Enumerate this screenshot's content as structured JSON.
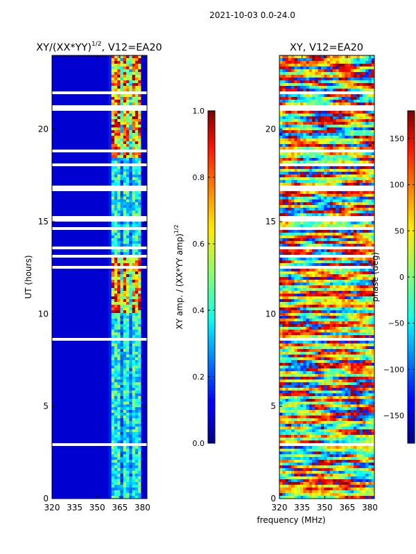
{
  "figure": {
    "suptitle": "2021-10-03 0.0-24.0",
    "shared_xlabel": "frequency (MHz)"
  },
  "chart_data": [
    {
      "type": "heatmap",
      "title": "XY/(XX*YY)",
      "title_exponent": "1/2",
      "title_suffix": ", V12=EA20",
      "xlabel": "",
      "ylabel": "UT (hours)",
      "xlim": [
        320,
        383
      ],
      "ylim": [
        0,
        24
      ],
      "xticks": [
        320,
        335,
        350,
        365,
        380
      ],
      "yticks": [
        0,
        5,
        10,
        15,
        20
      ],
      "colorbar": {
        "label": "XY amp. / (XX*YY amp)",
        "label_exponent": "1/2",
        "range": [
          0.0,
          1.0
        ],
        "ticks": [
          "0.0",
          "0.2",
          "0.4",
          "0.6",
          "0.8",
          "1.0"
        ],
        "tick_values": [
          0.0,
          0.2,
          0.4,
          0.6,
          0.8,
          1.0
        ]
      },
      "colormap": "jet",
      "active_band_mhz": [
        360,
        380
      ],
      "high_amplitude_intervals_ut": [
        [
          10.0,
          13.0
        ],
        [
          18.5,
          24.0
        ]
      ]
    },
    {
      "type": "heatmap",
      "title": "XY, V12=EA20",
      "xlabel": "frequency (MHz)",
      "ylabel": "",
      "xlim": [
        320,
        383
      ],
      "ylim": [
        0,
        24
      ],
      "xticks": [
        320,
        335,
        350,
        365,
        380
      ],
      "yticks": [
        0,
        5,
        10,
        15,
        20
      ],
      "colorbar": {
        "label": "phase (deg)",
        "range": [
          -180,
          180
        ],
        "ticks": [
          "−150",
          "−100",
          "−50",
          "0",
          "50",
          "100",
          "150"
        ],
        "tick_values": [
          -150,
          -100,
          -50,
          0,
          50,
          100,
          150
        ]
      },
      "colormap": "jet"
    }
  ]
}
